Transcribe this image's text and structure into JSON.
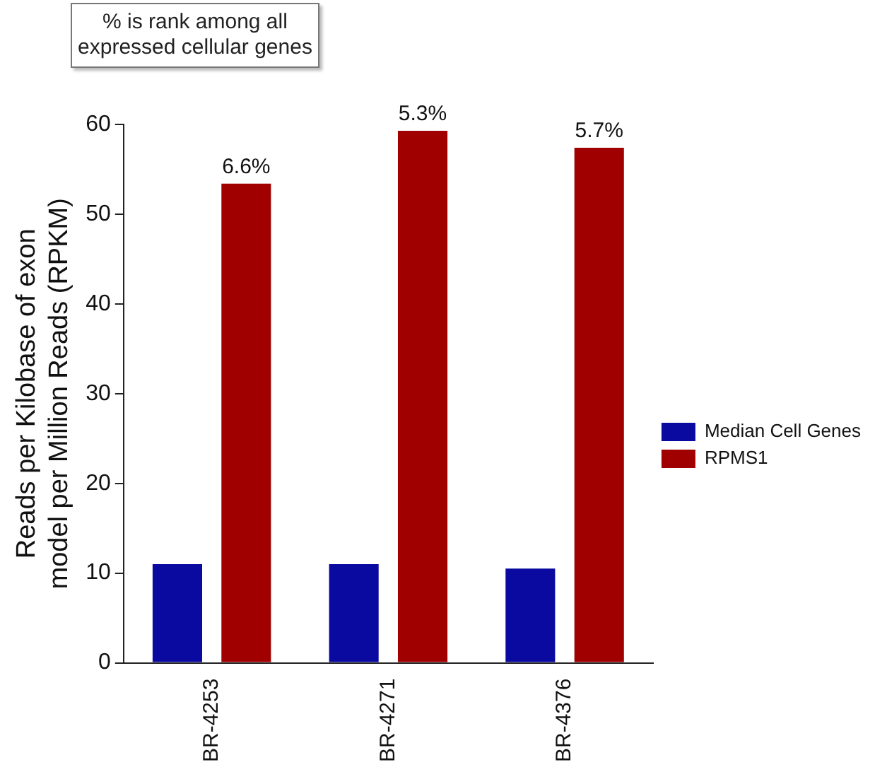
{
  "chart_data": {
    "type": "bar",
    "categories": [
      "BR-4253",
      "BR-4271",
      "BR-4376"
    ],
    "series": [
      {
        "name": "Median Cell Genes",
        "color": "#0a0aa0",
        "values": [
          11,
          11,
          10.5
        ]
      },
      {
        "name": "RPMS1",
        "color": "#a00000",
        "values": [
          53.4,
          59.3,
          57.4
        ]
      }
    ],
    "ylabel": "Reads per Kilobase of exon model per Million Reads (RPKM)",
    "ylim": [
      0,
      60
    ],
    "yticks": [
      0,
      10,
      20,
      30,
      40,
      50,
      60
    ],
    "grid": false,
    "legend": "right",
    "annotations": [
      "% is rank among all expressed cellular genes",
      "6.6%",
      "5.3%",
      "5.7%"
    ]
  }
}
